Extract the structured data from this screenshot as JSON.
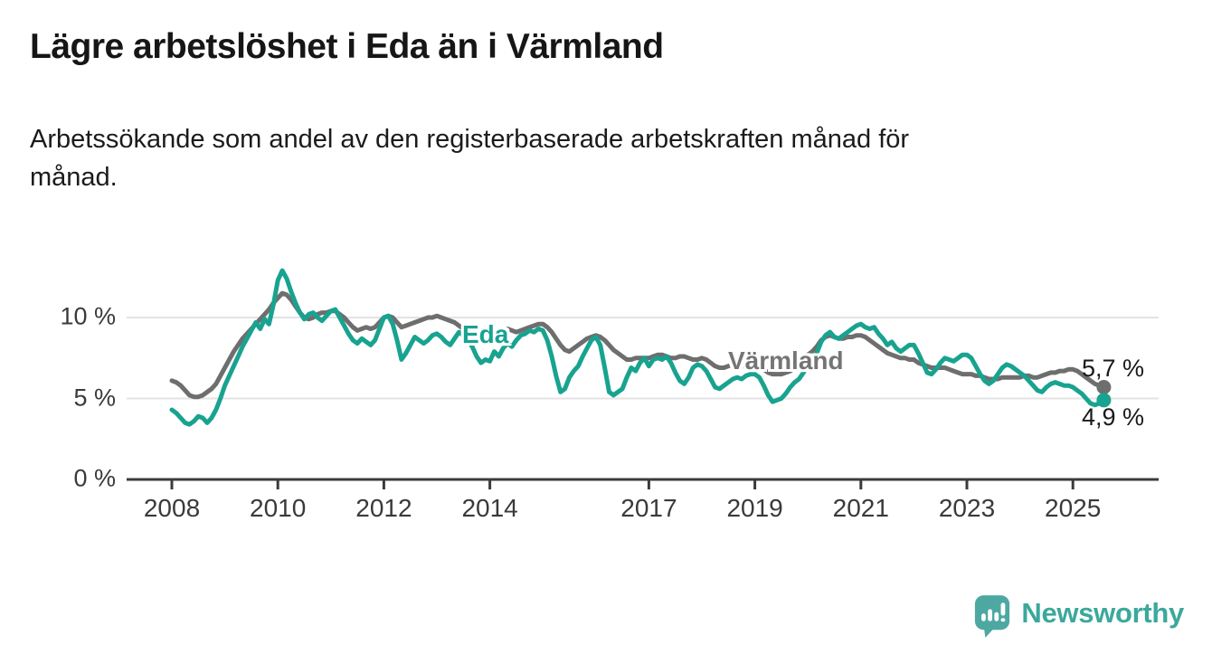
{
  "header": {
    "title": "Lägre arbetslöshet i Eda än i Värmland",
    "subtitle": "Arbetssökande som andel av den registerbaserade arbetskraften månad för\nmånad."
  },
  "chart_data": {
    "type": "line",
    "unit": "%",
    "frequency": "monthly",
    "start_month": "2008-01",
    "end_month": "2025-08",
    "ylim": [
      0,
      13.5
    ],
    "grid": "horizontal",
    "x_ticks": [
      2008,
      2010,
      2012,
      2014,
      2017,
      2019,
      2021,
      2023,
      2025
    ],
    "x_tick_labels": [
      "2008",
      "2010",
      "2012",
      "2014",
      "2017",
      "2019",
      "2021",
      "2023",
      "2025"
    ],
    "y_ticks": [
      {
        "value": 0,
        "label": "0 %"
      },
      {
        "value": 5,
        "label": "5 %"
      },
      {
        "value": 10,
        "label": "10 %"
      }
    ],
    "series": [
      {
        "id": "eda",
        "name": "Eda",
        "color": "#18a390",
        "end_label": "4,9 %",
        "last_value": 4.9,
        "values": [
          4.3,
          4.1,
          3.8,
          3.5,
          3.4,
          3.6,
          3.9,
          3.8,
          3.5,
          3.8,
          4.3,
          5.0,
          5.8,
          6.4,
          7.0,
          7.6,
          8.2,
          8.7,
          9.2,
          9.7,
          9.3,
          9.9,
          9.6,
          10.8,
          12.3,
          12.9,
          12.4,
          11.6,
          10.9,
          10.3,
          9.9,
          10.2,
          10.3,
          10.0,
          9.8,
          10.1,
          10.4,
          10.5,
          10.0,
          9.5,
          9.0,
          8.6,
          8.4,
          8.7,
          8.5,
          8.3,
          8.6,
          9.3,
          10.0,
          10.1,
          9.6,
          8.6,
          7.4,
          7.8,
          8.3,
          8.8,
          8.6,
          8.4,
          8.6,
          8.9,
          9.0,
          8.8,
          8.5,
          8.3,
          8.7,
          9.1,
          8.9,
          8.6,
          8.2,
          7.6,
          7.2,
          7.4,
          7.3,
          7.9,
          7.6,
          8.1,
          8.4,
          8.2,
          8.6,
          8.9,
          9.0,
          9.2,
          9.1,
          9.3,
          9.2,
          8.6,
          7.6,
          6.4,
          5.4,
          5.6,
          6.3,
          6.7,
          7.0,
          7.6,
          8.1,
          8.6,
          8.8,
          8.3,
          6.9,
          5.4,
          5.2,
          5.4,
          5.6,
          6.3,
          6.9,
          6.7,
          7.2,
          7.5,
          7.0,
          7.4,
          7.5,
          7.4,
          7.6,
          7.2,
          6.6,
          6.1,
          5.9,
          6.3,
          6.9,
          7.1,
          7.0,
          6.7,
          6.2,
          5.7,
          5.6,
          5.8,
          6.0,
          6.2,
          6.3,
          6.2,
          6.4,
          6.5,
          6.5,
          6.3,
          5.8,
          5.2,
          4.8,
          4.9,
          5.0,
          5.3,
          5.7,
          6.0,
          6.2,
          6.6,
          7.0,
          7.3,
          7.8,
          8.5,
          8.9,
          9.1,
          8.8,
          8.7,
          8.9,
          9.1,
          9.3,
          9.5,
          9.6,
          9.4,
          9.3,
          9.4,
          9.0,
          8.7,
          8.3,
          8.5,
          8.1,
          7.9,
          8.1,
          8.3,
          8.3,
          7.8,
          7.2,
          6.6,
          6.5,
          6.8,
          7.2,
          7.5,
          7.4,
          7.3,
          7.5,
          7.7,
          7.7,
          7.5,
          7.0,
          6.5,
          6.1,
          5.9,
          6.1,
          6.5,
          6.9,
          7.1,
          7.0,
          6.8,
          6.6,
          6.4,
          6.1,
          5.8,
          5.5,
          5.4,
          5.7,
          5.9,
          6.0,
          5.9,
          5.8,
          5.8,
          5.7,
          5.5,
          5.3,
          5.0,
          4.7,
          4.6,
          4.7,
          4.9
        ]
      },
      {
        "id": "varmland",
        "name": "Värmland",
        "color": "#6e6e6e",
        "end_label": "5,7 %",
        "last_value": 5.7,
        "values": [
          6.1,
          6.0,
          5.8,
          5.5,
          5.2,
          5.1,
          5.1,
          5.2,
          5.4,
          5.6,
          5.9,
          6.4,
          6.9,
          7.4,
          7.9,
          8.3,
          8.7,
          9.0,
          9.3,
          9.6,
          9.9,
          10.2,
          10.5,
          10.9,
          11.2,
          11.5,
          11.4,
          11.1,
          10.7,
          10.3,
          10.0,
          9.9,
          10.0,
          10.2,
          10.3,
          10.3,
          10.4,
          10.4,
          10.2,
          10.0,
          9.7,
          9.4,
          9.2,
          9.3,
          9.4,
          9.3,
          9.4,
          9.7,
          10.0,
          10.1,
          10.0,
          9.7,
          9.4,
          9.5,
          9.6,
          9.7,
          9.8,
          9.9,
          10.0,
          10.0,
          10.1,
          10.0,
          9.9,
          9.8,
          9.7,
          9.5,
          9.3,
          9.1,
          8.9,
          8.7,
          8.5,
          8.4,
          8.5,
          8.8,
          9.0,
          9.2,
          9.3,
          9.2,
          9.1,
          9.2,
          9.3,
          9.4,
          9.5,
          9.6,
          9.6,
          9.4,
          9.1,
          8.7,
          8.3,
          8.0,
          7.9,
          8.1,
          8.3,
          8.5,
          8.7,
          8.8,
          8.9,
          8.8,
          8.6,
          8.3,
          8.0,
          7.8,
          7.6,
          7.4,
          7.4,
          7.5,
          7.5,
          7.5,
          7.5,
          7.6,
          7.7,
          7.7,
          7.6,
          7.5,
          7.5,
          7.6,
          7.6,
          7.5,
          7.4,
          7.4,
          7.5,
          7.4,
          7.2,
          7.0,
          6.9,
          6.9,
          7.0,
          7.1,
          7.1,
          7.0,
          7.0,
          7.0,
          7.0,
          6.9,
          6.8,
          6.6,
          6.5,
          6.5,
          6.5,
          6.6,
          6.7,
          6.9,
          7.1,
          7.4,
          7.7,
          7.9,
          8.2,
          8.6,
          8.8,
          8.9,
          8.8,
          8.7,
          8.7,
          8.8,
          8.8,
          8.9,
          8.9,
          8.8,
          8.6,
          8.4,
          8.2,
          8.0,
          7.8,
          7.7,
          7.6,
          7.5,
          7.5,
          7.4,
          7.4,
          7.2,
          7.1,
          7.0,
          6.9,
          6.9,
          6.9,
          6.9,
          6.8,
          6.7,
          6.6,
          6.5,
          6.5,
          6.5,
          6.4,
          6.4,
          6.3,
          6.2,
          6.2,
          6.2,
          6.3,
          6.3,
          6.3,
          6.3,
          6.3,
          6.4,
          6.4,
          6.3,
          6.3,
          6.4,
          6.5,
          6.6,
          6.6,
          6.7,
          6.7,
          6.8,
          6.8,
          6.7,
          6.5,
          6.3,
          6.1,
          5.9,
          5.8,
          5.7
        ]
      }
    ]
  },
  "colors": {
    "eda_line": "#18a390",
    "varmland_line": "#6e6e6e",
    "gridline": "#e3e3e3",
    "axis": "#3b3b3b",
    "title_text": "#161616",
    "tick_text": "#3a3a3a",
    "brand_teal": "#3ba89b",
    "logo_bubble": "#4da8a2"
  },
  "footer": {
    "brand": "Newsworthy",
    "logo_icon": "bar-chart-speech-bubble-icon"
  }
}
